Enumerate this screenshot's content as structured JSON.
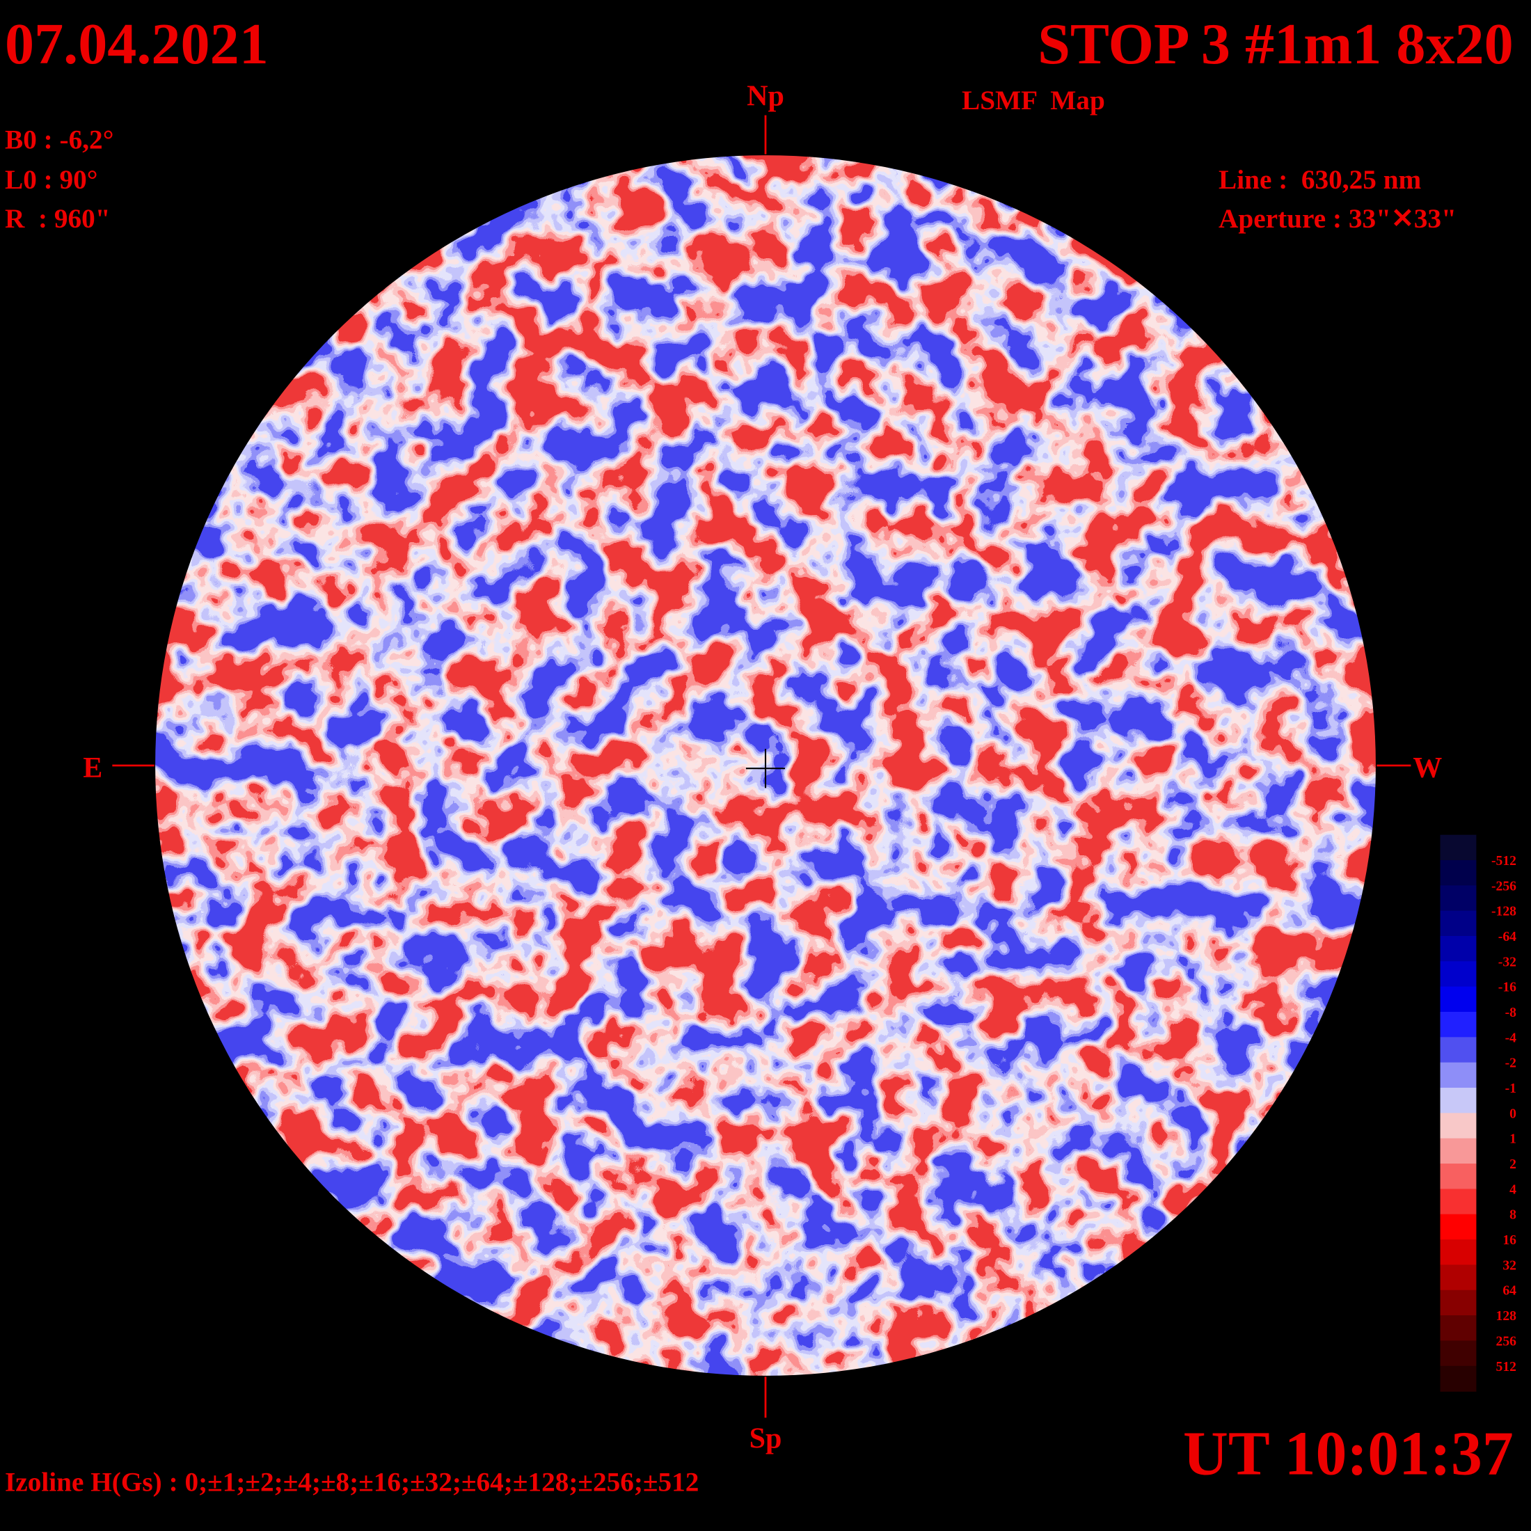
{
  "header": {
    "date": "07.04.2021",
    "title": "STOP 3 #1m1 8x20",
    "subtitle": "LSMF  Map",
    "time": "UT 10:01:37"
  },
  "parameters": {
    "b0": "B0 : -6,2°",
    "l0": "L0 : 90°",
    "radius": "R  : 960\""
  },
  "instrument": {
    "line": "Line :  630,25 nm",
    "aperture": "Aperture : 33\"✕33\""
  },
  "directions": {
    "north": "Np",
    "south": "Sp",
    "east": "E",
    "west": "W"
  },
  "izoline": "Izoline H(Gs) : 0;±1;±2;±4;±8;±16;±32;±64;±128;±256;±512",
  "colorbar": {
    "levels": [
      -512,
      -256,
      -128,
      -64,
      -32,
      -16,
      -8,
      -4,
      -2,
      -1,
      0,
      1,
      2,
      4,
      8,
      16,
      32,
      64,
      128,
      256,
      512
    ],
    "colors": [
      "#080830",
      "#00004c",
      "#000066",
      "#000088",
      "#0000aa",
      "#0000cc",
      "#0000ee",
      "#2020ff",
      "#5050f0",
      "#8e8ef8",
      "#c8c8f8",
      "#f8c8c8",
      "#f89898",
      "#f86060",
      "#f83030",
      "#ff0000",
      "#d80000",
      "#b00000",
      "#880000",
      "#600000",
      "#400000",
      "#280000"
    ]
  }
}
